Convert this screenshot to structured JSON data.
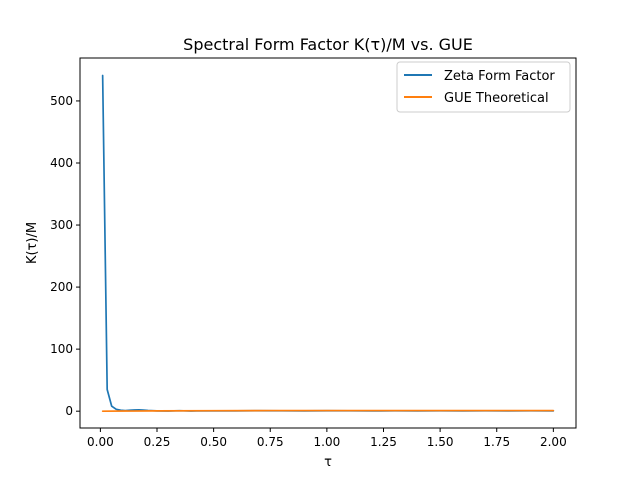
{
  "chart_data": {
    "type": "line",
    "title": "Spectral Form Factor K(τ)/M vs. GUE",
    "xlabel": "τ",
    "ylabel": "K(τ)/M",
    "xlim": [
      -0.09,
      2.1
    ],
    "ylim": [
      -27.1,
      569.2
    ],
    "xticks": [
      0.0,
      0.25,
      0.5,
      0.75,
      1.0,
      1.25,
      1.5,
      1.75,
      2.0
    ],
    "xtick_labels": [
      "0.00",
      "0.25",
      "0.50",
      "0.75",
      "1.00",
      "1.25",
      "1.50",
      "1.75",
      "2.00"
    ],
    "yticks": [
      0,
      100,
      200,
      300,
      400,
      500
    ],
    "ytick_labels": [
      "0",
      "100",
      "200",
      "300",
      "400",
      "500"
    ],
    "grid": false,
    "legend_position": "top-right",
    "series": [
      {
        "name": "Zeta Form Factor",
        "color": "#1f77b4",
        "x": [
          0.01,
          0.03,
          0.05,
          0.07,
          0.09,
          0.11,
          0.13,
          0.15,
          0.17,
          0.19,
          0.21,
          0.25,
          0.3,
          0.35,
          0.4,
          0.45,
          0.5,
          0.6,
          0.7,
          0.8,
          0.9,
          1.0,
          1.1,
          1.2,
          1.3,
          1.4,
          1.5,
          1.6,
          1.7,
          1.8,
          1.9,
          2.0
        ],
        "values": [
          541,
          35,
          8,
          3,
          1.5,
          1.0,
          1.5,
          2.0,
          2.2,
          1.8,
          1.2,
          0.5,
          0.3,
          0.8,
          0.2,
          0.6,
          0.4,
          0.5,
          0.7,
          0.6,
          0.5,
          0.7,
          0.6,
          0.5,
          0.6,
          0.5,
          0.6,
          0.5,
          0.6,
          0.5,
          0.6,
          0.5
        ]
      },
      {
        "name": "GUE Theoretical",
        "color": "#ff7f0e",
        "x": [
          0.01,
          0.25,
          0.5,
          0.75,
          1.0,
          1.25,
          1.5,
          1.75,
          2.0
        ],
        "values": [
          0.0,
          0.5,
          0.8,
          1.0,
          1.0,
          1.0,
          1.0,
          1.0,
          1.0
        ]
      }
    ]
  }
}
